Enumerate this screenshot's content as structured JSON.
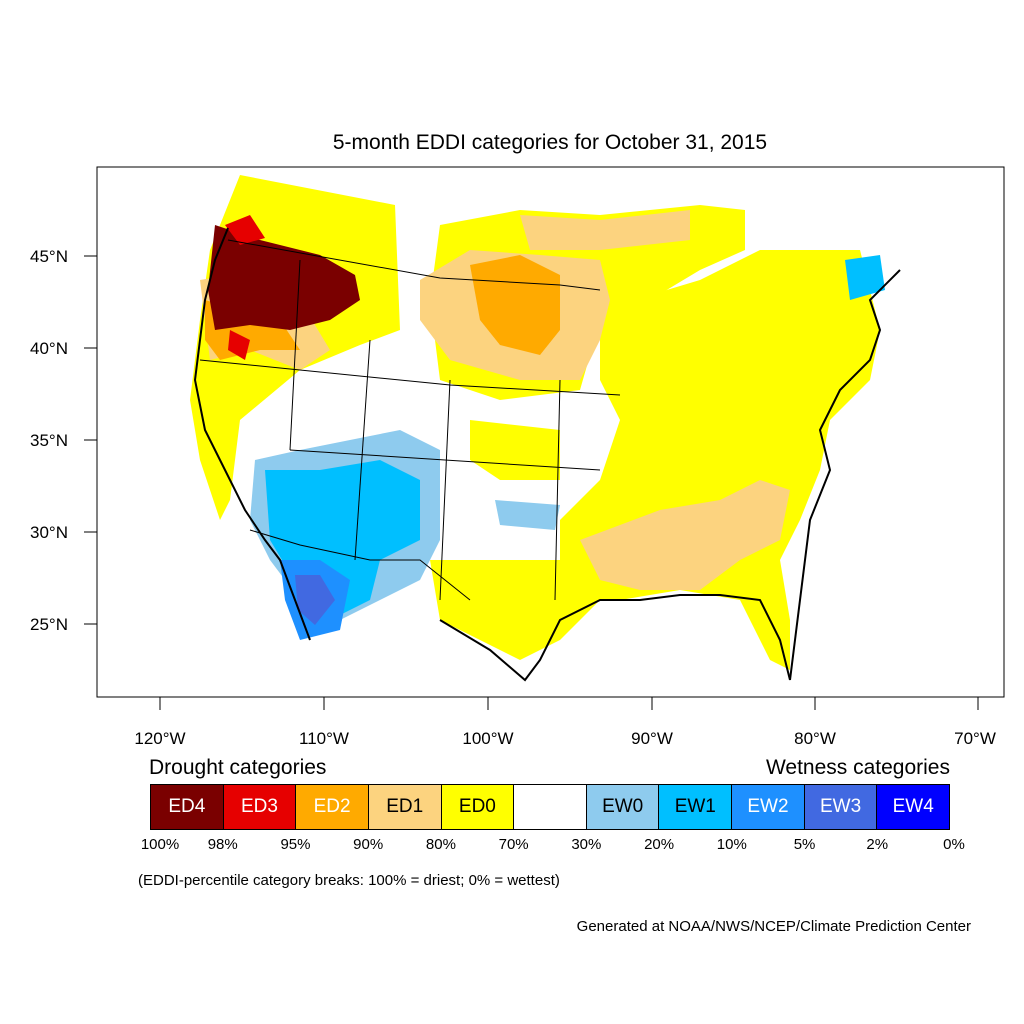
{
  "title": "5-month EDDI categories for October 31, 2015",
  "axes": {
    "lat_labels": [
      "45°N",
      "40°N",
      "35°N",
      "30°N",
      "25°N"
    ],
    "lon_labels": [
      "120°W",
      "110°W",
      "100°W",
      "90°W",
      "80°W",
      "70°W"
    ]
  },
  "legend": {
    "drought_heading": "Drought categories",
    "wetness_heading": "Wetness categories",
    "categories": [
      {
        "label": "ED4",
        "color": "#7a0000",
        "text_color": "#ffffff"
      },
      {
        "label": "ED3",
        "color": "#e60000",
        "text_color": "#ffffff"
      },
      {
        "label": "ED2",
        "color": "#ffaa00",
        "text_color": "#ffffff"
      },
      {
        "label": "ED1",
        "color": "#fcd37f",
        "text_color": "#000000"
      },
      {
        "label": "ED0",
        "color": "#ffff00",
        "text_color": "#000000"
      },
      {
        "label": "",
        "color": "#ffffff",
        "text_color": "#000000"
      },
      {
        "label": "EW0",
        "color": "#8ecbee",
        "text_color": "#000000"
      },
      {
        "label": "EW1",
        "color": "#00bfff",
        "text_color": "#000000"
      },
      {
        "label": "EW2",
        "color": "#1e90ff",
        "text_color": "#ffffff"
      },
      {
        "label": "EW3",
        "color": "#4169e1",
        "text_color": "#ffffff"
      },
      {
        "label": "EW4",
        "color": "#0000ff",
        "text_color": "#ffffff"
      }
    ],
    "percentiles": [
      "100%",
      "98%",
      "95%",
      "90%",
      "80%",
      "70%",
      "30%",
      "20%",
      "10%",
      "5%",
      "2%",
      "0%"
    ]
  },
  "note": "(EDDI-percentile category breaks: 100% = driest; 0% = wettest)",
  "credit": "Generated at NOAA/NWS/NCEP/Climate Prediction Center"
}
